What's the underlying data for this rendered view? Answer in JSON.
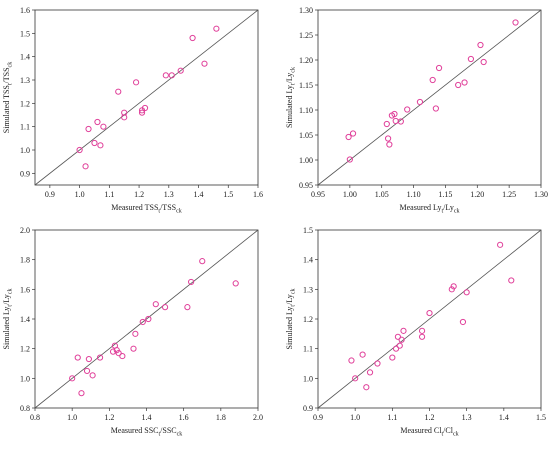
{
  "chart_data": [
    {
      "type": "scatter",
      "xlabel": {
        "base": "Measured TSS",
        "sub1": "t",
        "mid": "/TSS",
        "sub2": "ck"
      },
      "ylabel": {
        "base": "Simulated TSS",
        "sub1": "t",
        "mid": "/TSS",
        "sub2": "ck"
      },
      "xlim": [
        0.85,
        1.6
      ],
      "ylim": [
        0.85,
        1.6
      ],
      "xticks": [
        "0.9",
        "1.0",
        "1.1",
        "1.2",
        "1.3",
        "1.4",
        "1.5",
        "1.6"
      ],
      "yticks": [
        "0.9",
        "1.0",
        "1.1",
        "1.2",
        "1.3",
        "1.4",
        "1.5",
        "1.6"
      ],
      "reference_line": "1:1",
      "marker_color": "#e0409a",
      "series": [
        {
          "x": [
            1.0,
            1.02,
            1.03,
            1.05,
            1.07,
            1.06,
            1.08,
            1.13,
            1.15,
            1.15,
            1.19,
            1.21,
            1.21,
            1.22,
            1.29,
            1.31,
            1.34,
            1.38,
            1.42,
            1.46
          ],
          "y": [
            1.0,
            0.93,
            1.09,
            1.03,
            1.02,
            1.12,
            1.1,
            1.25,
            1.16,
            1.14,
            1.29,
            1.17,
            1.16,
            1.18,
            1.32,
            1.32,
            1.34,
            1.48,
            1.37,
            1.52
          ]
        }
      ]
    },
    {
      "type": "scatter",
      "xlabel": {
        "base": "Measured Ly",
        "sub1": "t",
        "mid": "/Ly",
        "sub2": "ck"
      },
      "ylabel": {
        "base": "Simulated Ly",
        "sub1": "t",
        "mid": "/Ly",
        "sub2": "ck"
      },
      "xlim": [
        0.95,
        1.3
      ],
      "ylim": [
        0.95,
        1.3
      ],
      "xticks": [
        "0.95",
        "1.00",
        "1.05",
        "1.10",
        "1.15",
        "1.20",
        "1.25",
        "1.30"
      ],
      "yticks": [
        "0.95",
        "1.00",
        "1.05",
        "1.10",
        "1.15",
        "1.20",
        "1.25",
        "1.30"
      ],
      "reference_line": "1:1",
      "marker_color": "#e0409a",
      "series": [
        {
          "x": [
            0.998,
            1.0,
            1.005,
            1.058,
            1.06,
            1.062,
            1.066,
            1.07,
            1.072,
            1.08,
            1.09,
            1.11,
            1.13,
            1.135,
            1.14,
            1.17,
            1.18,
            1.19,
            1.205,
            1.21,
            1.26
          ],
          "y": [
            1.046,
            1.001,
            1.053,
            1.072,
            1.043,
            1.031,
            1.089,
            1.092,
            1.078,
            1.077,
            1.101,
            1.116,
            1.16,
            1.103,
            1.184,
            1.15,
            1.155,
            1.202,
            1.23,
            1.196,
            1.275
          ]
        }
      ]
    },
    {
      "type": "scatter",
      "xlabel": {
        "base": "Measured SSC",
        "sub1": "t",
        "mid": "/SSC",
        "sub2": "ck"
      },
      "ylabel": {
        "base": "Simulated Ly",
        "sub1": "t",
        "mid": "/Ly",
        "sub2": "ck"
      },
      "xlim": [
        0.8,
        2.0
      ],
      "ylim": [
        0.8,
        2.0
      ],
      "xticks": [
        "0.8",
        "1.0",
        "1.2",
        "1.4",
        "1.6",
        "1.8",
        "2.0"
      ],
      "yticks": [
        "0.8",
        "1.0",
        "1.2",
        "1.4",
        "1.6",
        "1.8",
        "2.0"
      ],
      "reference_line": "1:1",
      "marker_color": "#e0409a",
      "series": [
        {
          "x": [
            1.0,
            1.03,
            1.05,
            1.08,
            1.09,
            1.11,
            1.15,
            1.22,
            1.23,
            1.24,
            1.25,
            1.27,
            1.33,
            1.34,
            1.38,
            1.41,
            1.45,
            1.5,
            1.62,
            1.64,
            1.7,
            1.88
          ],
          "y": [
            1.0,
            1.14,
            0.9,
            1.05,
            1.13,
            1.02,
            1.14,
            1.18,
            1.22,
            1.19,
            1.17,
            1.15,
            1.2,
            1.3,
            1.38,
            1.4,
            1.5,
            1.48,
            1.48,
            1.65,
            1.79,
            1.64
          ]
        }
      ]
    },
    {
      "type": "scatter",
      "xlabel": {
        "base": "Measured Cl",
        "sub1": "t",
        "mid": "/Cl",
        "sub2": "ck"
      },
      "ylabel": {
        "base": "Simulated Ly",
        "sub1": "t",
        "mid": "/Ly",
        "sub2": "ck"
      },
      "xlim": [
        0.9,
        1.5
      ],
      "ylim": [
        0.9,
        1.5
      ],
      "xticks": [
        "0.9",
        "1.0",
        "1.1",
        "1.2",
        "1.3",
        "1.4",
        "1.5"
      ],
      "yticks": [
        "0.9",
        "1.0",
        "1.1",
        "1.2",
        "1.3",
        "1.4",
        "1.5"
      ],
      "reference_line": "1:1",
      "marker_color": "#e0409a",
      "series": [
        {
          "x": [
            0.99,
            1.0,
            1.02,
            1.03,
            1.04,
            1.06,
            1.1,
            1.11,
            1.115,
            1.12,
            1.125,
            1.13,
            1.18,
            1.18,
            1.2,
            1.26,
            1.265,
            1.29,
            1.3,
            1.39,
            1.42
          ],
          "y": [
            1.06,
            1.0,
            1.08,
            0.97,
            1.02,
            1.05,
            1.07,
            1.1,
            1.14,
            1.11,
            1.13,
            1.16,
            1.16,
            1.14,
            1.22,
            1.3,
            1.31,
            1.19,
            1.29,
            1.45,
            1.33
          ]
        }
      ]
    }
  ]
}
